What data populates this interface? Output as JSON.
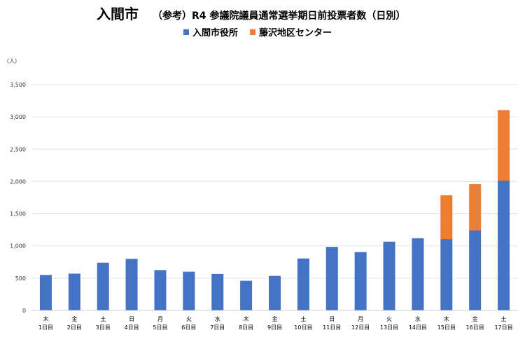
{
  "chart_data": {
    "type": "bar",
    "stacked": true,
    "title": "入間市",
    "subtitle": "（参考）R4 参議院議員通常選挙期日前投票者数（日別）",
    "ylabel": "（人）",
    "ylim": [
      0,
      3500
    ],
    "yticks": [
      "0",
      "500",
      "1,000",
      "1,500",
      "2,000",
      "2,500",
      "3,000",
      "3,500"
    ],
    "ytick_values": [
      0,
      500,
      1000,
      1500,
      2000,
      2500,
      3000,
      3500
    ],
    "grid": true,
    "legend_position": "top-center",
    "categories": [
      [
        "木",
        "1日目"
      ],
      [
        "金",
        "2日目"
      ],
      [
        "土",
        "3日目"
      ],
      [
        "日",
        "4日目"
      ],
      [
        "月",
        "5日目"
      ],
      [
        "火",
        "6日目"
      ],
      [
        "水",
        "7日目"
      ],
      [
        "木",
        "8日目"
      ],
      [
        "金",
        "9日目"
      ],
      [
        "土",
        "10日目"
      ],
      [
        "日",
        "11日目"
      ],
      [
        "月",
        "12日目"
      ],
      [
        "火",
        "13日目"
      ],
      [
        "水",
        "14日目"
      ],
      [
        "木",
        "15日目"
      ],
      [
        "金",
        "16日目"
      ],
      [
        "土",
        "17日目"
      ]
    ],
    "series": [
      {
        "name": "入間市役所",
        "color": "#4472C4",
        "values": [
          550,
          570,
          740,
          800,
          625,
          600,
          565,
          460,
          535,
          805,
          985,
          905,
          1065,
          1120,
          1105,
          1240,
          2010
        ]
      },
      {
        "name": "藤沢地区センター",
        "color": "#ED7D31",
        "values": [
          0,
          0,
          0,
          0,
          0,
          0,
          0,
          0,
          0,
          0,
          0,
          0,
          0,
          0,
          680,
          720,
          1095
        ]
      }
    ]
  }
}
